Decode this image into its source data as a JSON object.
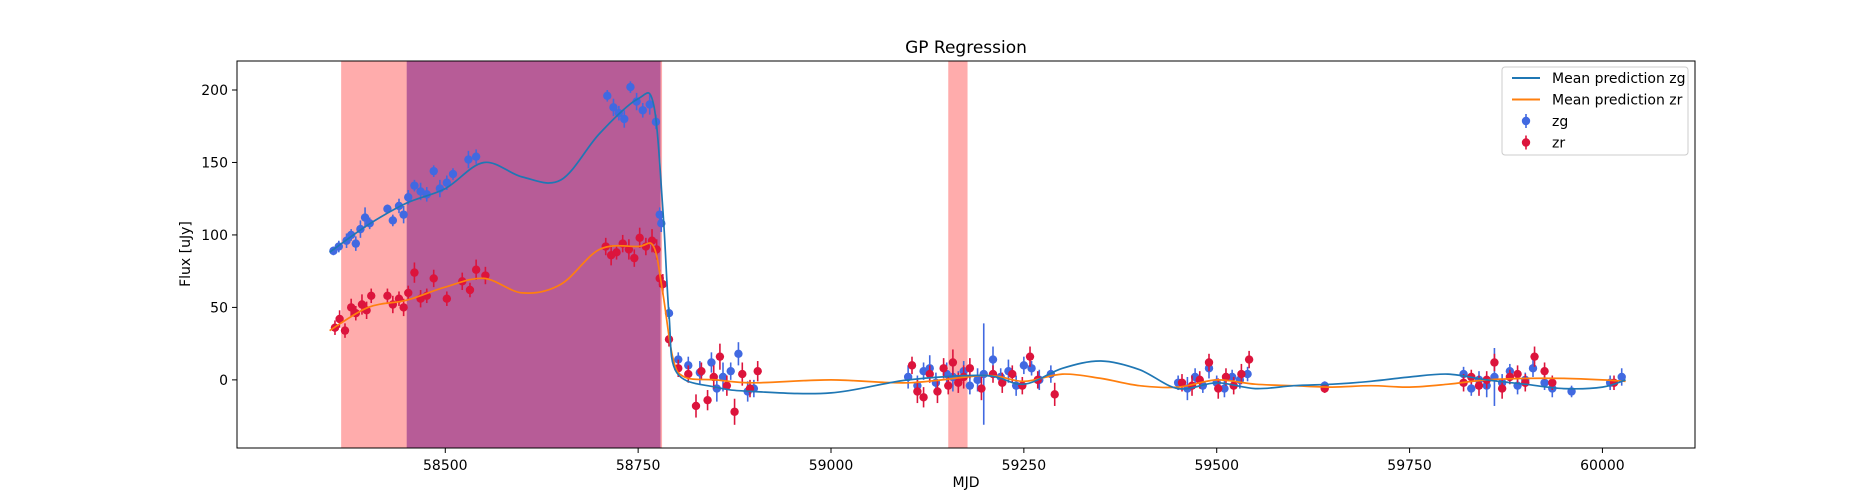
{
  "chart_data": {
    "type": "scatter",
    "title": "GP Regression",
    "xlabel": "MJD",
    "ylabel": "Flux [uJy]",
    "xlim": [
      58230,
      60120
    ],
    "ylim": [
      -47,
      220
    ],
    "xticks": [
      58500,
      58750,
      59000,
      59250,
      59500,
      59750,
      60000
    ],
    "xtick_labels": [
      "58500",
      "58750",
      "59000",
      "59250",
      "59500",
      "59750",
      "60000"
    ],
    "yticks": [
      0,
      50,
      100,
      150,
      200
    ],
    "ytick_labels": [
      "0",
      "50",
      "100",
      "150",
      "200"
    ],
    "grid": false,
    "legend_position": "top-right",
    "colors": {
      "mean_zg": "#1f77b4",
      "mean_zr": "#ff7f0e",
      "points_zg": "#4169e1",
      "points_zr": "#dc143c",
      "shade_red": "#ff5a5a",
      "shade_purple": "#9b3d8f"
    },
    "shaded_regions": [
      {
        "x0": 58365,
        "x1": 58781,
        "color": "#ff5a5a",
        "opacity": 0.5
      },
      {
        "x0": 58450,
        "x1": 58779,
        "color": "#9b3d8f",
        "opacity": 0.72
      },
      {
        "x0": 59152,
        "x1": 59177,
        "color": "#ff5a5a",
        "opacity": 0.5
      }
    ],
    "series": [
      {
        "name": "Mean prediction zg",
        "kind": "line",
        "color": "#1f77b4",
        "x": [
          58350,
          58400,
          58450,
          58500,
          58550,
          58600,
          58650,
          58700,
          58750,
          58770,
          58782,
          58790,
          58800,
          58850,
          58900,
          59000,
          59100,
          59200,
          59250,
          59300,
          59350,
          59400,
          59450,
          59500,
          59550,
          59600,
          59650,
          59700,
          59750,
          59800,
          59850,
          59900,
          59950,
          60000,
          60030
        ],
        "y": [
          88,
          107,
          122,
          132,
          150,
          140,
          138,
          170,
          194,
          190,
          118,
          45,
          5,
          -5,
          -8,
          -9,
          0,
          3,
          -3,
          8,
          13,
          7,
          -6,
          -2,
          -6,
          -4,
          -3,
          -1,
          2,
          4,
          0,
          -3,
          -6,
          -5,
          0
        ]
      },
      {
        "name": "Mean prediction zr",
        "kind": "line",
        "color": "#ff7f0e",
        "x": [
          58350,
          58400,
          58450,
          58500,
          58550,
          58600,
          58650,
          58700,
          58750,
          58770,
          58782,
          58795,
          58810,
          58850,
          58900,
          59000,
          59100,
          59200,
          59250,
          59300,
          59350,
          59400,
          59450,
          59500,
          59550,
          59600,
          59650,
          59700,
          59750,
          59800,
          59850,
          59900,
          59950,
          60000,
          60030
        ],
        "y": [
          34,
          50,
          55,
          64,
          70,
          60,
          66,
          90,
          92,
          92,
          60,
          15,
          2,
          0,
          -2,
          0,
          -2,
          3,
          -1,
          4,
          1,
          -4,
          -5,
          0,
          -3,
          -4,
          -5,
          -4,
          -5,
          -3,
          0,
          1,
          1,
          0,
          -1
        ]
      },
      {
        "name": "zg",
        "kind": "errorbar",
        "color": "#4169e1",
        "points": [
          [
            58355,
            89,
            3
          ],
          [
            58362,
            92,
            4
          ],
          [
            58372,
            96,
            5
          ],
          [
            58378,
            100,
            4
          ],
          [
            58384,
            94,
            5
          ],
          [
            58390,
            104,
            6
          ],
          [
            58396,
            112,
            7
          ],
          [
            58402,
            108,
            4
          ],
          [
            58425,
            118,
            3
          ],
          [
            58432,
            110,
            4
          ],
          [
            58440,
            120,
            5
          ],
          [
            58446,
            114,
            6
          ],
          [
            58452,
            126,
            5
          ],
          [
            58460,
            134,
            4
          ],
          [
            58468,
            130,
            6
          ],
          [
            58476,
            128,
            5
          ],
          [
            58485,
            144,
            4
          ],
          [
            58493,
            132,
            6
          ],
          [
            58502,
            136,
            5
          ],
          [
            58510,
            142,
            4
          ],
          [
            58530,
            152,
            6
          ],
          [
            58540,
            154,
            5
          ],
          [
            58710,
            196,
            4
          ],
          [
            58718,
            188,
            6
          ],
          [
            58725,
            184,
            5
          ],
          [
            58732,
            180,
            6
          ],
          [
            58740,
            202,
            4
          ],
          [
            58748,
            192,
            6
          ],
          [
            58756,
            186,
            5
          ],
          [
            58765,
            190,
            7
          ],
          [
            58773,
            178,
            5
          ],
          [
            58778,
            114,
            5
          ],
          [
            58780,
            108,
            6
          ],
          [
            58790,
            46,
            4
          ],
          [
            58802,
            14,
            5
          ],
          [
            58815,
            10,
            6
          ],
          [
            58830,
            5,
            8
          ],
          [
            58845,
            12,
            7
          ],
          [
            58852,
            -6,
            9
          ],
          [
            58860,
            2,
            10
          ],
          [
            58870,
            6,
            6
          ],
          [
            58880,
            18,
            8
          ],
          [
            58892,
            -8,
            7
          ],
          [
            58900,
            -6,
            6
          ],
          [
            59100,
            2,
            8
          ],
          [
            59112,
            -4,
            7
          ],
          [
            59120,
            6,
            6
          ],
          [
            59128,
            8,
            9
          ],
          [
            59136,
            -2,
            7
          ],
          [
            59150,
            4,
            8
          ],
          [
            59158,
            2,
            10
          ],
          [
            59165,
            0,
            6
          ],
          [
            59172,
            6,
            7
          ],
          [
            59180,
            -4,
            6
          ],
          [
            59190,
            0,
            8
          ],
          [
            59198,
            4,
            35
          ],
          [
            59210,
            14,
            9
          ],
          [
            59220,
            2,
            6
          ],
          [
            59230,
            6,
            8
          ],
          [
            59240,
            -4,
            7
          ],
          [
            59250,
            10,
            6
          ],
          [
            59260,
            8,
            5
          ],
          [
            59270,
            0,
            7
          ],
          [
            59285,
            4,
            6
          ],
          [
            59450,
            -2,
            5
          ],
          [
            59462,
            -6,
            8
          ],
          [
            59472,
            2,
            6
          ],
          [
            59482,
            -4,
            5
          ],
          [
            59490,
            8,
            7
          ],
          [
            59500,
            -2,
            5
          ],
          [
            59510,
            -6,
            6
          ],
          [
            59520,
            2,
            5
          ],
          [
            59530,
            0,
            6
          ],
          [
            59540,
            4,
            5
          ],
          [
            59640,
            -4,
            3
          ],
          [
            59820,
            4,
            5
          ],
          [
            59830,
            -6,
            5
          ],
          [
            59840,
            0,
            6
          ],
          [
            59850,
            -4,
            8
          ],
          [
            59860,
            2,
            20
          ],
          [
            59870,
            -2,
            6
          ],
          [
            59880,
            6,
            5
          ],
          [
            59890,
            -4,
            6
          ],
          [
            59900,
            0,
            5
          ],
          [
            59910,
            8,
            6
          ],
          [
            59925,
            -2,
            5
          ],
          [
            59935,
            -6,
            6
          ],
          [
            59960,
            -8,
            4
          ],
          [
            60010,
            -2,
            5
          ],
          [
            60025,
            2,
            6
          ]
        ]
      },
      {
        "name": "zr",
        "kind": "errorbar",
        "color": "#dc143c",
        "points": [
          [
            58357,
            36,
            5
          ],
          [
            58363,
            42,
            6
          ],
          [
            58370,
            34,
            5
          ],
          [
            58378,
            50,
            6
          ],
          [
            58384,
            46,
            5
          ],
          [
            58392,
            52,
            7
          ],
          [
            58398,
            48,
            6
          ],
          [
            58404,
            58,
            5
          ],
          [
            58425,
            58,
            5
          ],
          [
            58432,
            52,
            6
          ],
          [
            58440,
            56,
            5
          ],
          [
            58446,
            50,
            6
          ],
          [
            58452,
            60,
            5
          ],
          [
            58460,
            74,
            7
          ],
          [
            58468,
            56,
            6
          ],
          [
            58476,
            58,
            5
          ],
          [
            58485,
            70,
            6
          ],
          [
            58502,
            56,
            5
          ],
          [
            58522,
            68,
            6
          ],
          [
            58532,
            62,
            5
          ],
          [
            58540,
            76,
            7
          ],
          [
            58552,
            72,
            6
          ],
          [
            58708,
            92,
            6
          ],
          [
            58715,
            86,
            7
          ],
          [
            58722,
            88,
            5
          ],
          [
            58730,
            94,
            6
          ],
          [
            58738,
            90,
            7
          ],
          [
            58745,
            84,
            6
          ],
          [
            58752,
            98,
            7
          ],
          [
            58760,
            92,
            6
          ],
          [
            58768,
            96,
            8
          ],
          [
            58774,
            90,
            7
          ],
          [
            58778,
            70,
            6
          ],
          [
            58782,
            66,
            7
          ],
          [
            58790,
            28,
            5
          ],
          [
            58802,
            8,
            6
          ],
          [
            58815,
            4,
            6
          ],
          [
            58825,
            -18,
            8
          ],
          [
            58832,
            6,
            6
          ],
          [
            58840,
            -14,
            7
          ],
          [
            58848,
            2,
            8
          ],
          [
            58856,
            16,
            9
          ],
          [
            58865,
            -4,
            7
          ],
          [
            58875,
            -22,
            9
          ],
          [
            58885,
            4,
            8
          ],
          [
            58895,
            -6,
            6
          ],
          [
            58905,
            6,
            7
          ],
          [
            59105,
            10,
            6
          ],
          [
            59112,
            -8,
            8
          ],
          [
            59120,
            -12,
            7
          ],
          [
            59128,
            4,
            6
          ],
          [
            59138,
            -8,
            8
          ],
          [
            59146,
            8,
            7
          ],
          [
            59152,
            -4,
            6
          ],
          [
            59158,
            12,
            9
          ],
          [
            59165,
            -2,
            7
          ],
          [
            59172,
            2,
            8
          ],
          [
            59180,
            8,
            7
          ],
          [
            59195,
            -6,
            8
          ],
          [
            59210,
            4,
            6
          ],
          [
            59222,
            -2,
            7
          ],
          [
            59235,
            4,
            6
          ],
          [
            59248,
            -4,
            6
          ],
          [
            59258,
            16,
            7
          ],
          [
            59268,
            0,
            6
          ],
          [
            59290,
            -10,
            8
          ],
          [
            59455,
            -2,
            6
          ],
          [
            59468,
            -4,
            7
          ],
          [
            59478,
            0,
            6
          ],
          [
            59490,
            12,
            6
          ],
          [
            59502,
            -6,
            7
          ],
          [
            59512,
            2,
            6
          ],
          [
            59522,
            -4,
            6
          ],
          [
            59532,
            4,
            7
          ],
          [
            59542,
            14,
            6
          ],
          [
            59640,
            -6,
            3
          ],
          [
            59820,
            -2,
            6
          ],
          [
            59830,
            2,
            5
          ],
          [
            59840,
            -4,
            7
          ],
          [
            59850,
            0,
            6
          ],
          [
            59860,
            12,
            6
          ],
          [
            59870,
            -6,
            7
          ],
          [
            59880,
            2,
            5
          ],
          [
            59890,
            4,
            6
          ],
          [
            59900,
            -2,
            6
          ],
          [
            59912,
            16,
            7
          ],
          [
            59925,
            6,
            6
          ],
          [
            59935,
            -2,
            5
          ],
          [
            60015,
            -2,
            5
          ]
        ]
      }
    ],
    "legend": [
      {
        "label": "Mean prediction zg",
        "kind": "line",
        "color": "#1f77b4"
      },
      {
        "label": "Mean prediction zr",
        "kind": "line",
        "color": "#ff7f0e"
      },
      {
        "label": "zg",
        "kind": "errorbar",
        "color": "#4169e1"
      },
      {
        "label": "zr",
        "kind": "errorbar",
        "color": "#dc143c"
      }
    ]
  }
}
